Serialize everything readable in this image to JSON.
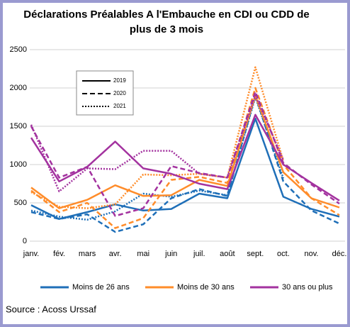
{
  "chart_data": {
    "type": "line",
    "title": [
      "Déclarations Préalables A l'Embauche en CDI ou CDD de",
      "plus de 3 mois"
    ],
    "categories": [
      "janv.",
      "fév.",
      "mars",
      "avr.",
      "mai",
      "juin",
      "juil.",
      "août",
      "sept.",
      "oct.",
      "nov.",
      "déc."
    ],
    "ylim": [
      0,
      2500
    ],
    "yticks": [
      0,
      500,
      1000,
      1500,
      2000,
      2500
    ],
    "grid": true,
    "line_styles": [
      {
        "name": "2019",
        "dash": "solid"
      },
      {
        "name": "2020",
        "dash": "dashed"
      },
      {
        "name": "2021",
        "dash": "dotted"
      }
    ],
    "series": [
      {
        "name": "Moins de 26 ans",
        "color": "#1f6fb8",
        "values_by_year": [
          [
            470,
            290,
            380,
            480,
            400,
            420,
            620,
            560,
            1600,
            580,
            420,
            320
          ],
          [
            380,
            290,
            350,
            120,
            220,
            560,
            680,
            590,
            1900,
            780,
            400,
            230
          ],
          [
            400,
            320,
            280,
            390,
            620,
            580,
            660,
            600,
            1880,
            820,
            null,
            null
          ]
        ]
      },
      {
        "name": "Moins de 30 ans",
        "color": "#ff8c2a",
        "values_by_year": [
          [
            700,
            430,
            540,
            730,
            590,
            600,
            800,
            720,
            1900,
            900,
            560,
            440
          ],
          [
            660,
            380,
            500,
            170,
            300,
            800,
            840,
            760,
            2000,
            1000,
            560,
            340
          ],
          [
            640,
            450,
            430,
            480,
            870,
            860,
            880,
            830,
            2270,
            1050,
            null,
            null
          ]
        ]
      },
      {
        "name": "30 ans ou plus",
        "color": "#a3329f",
        "values_by_year": [
          [
            1350,
            780,
            970,
            1300,
            950,
            880,
            750,
            680,
            1650,
            1000,
            760,
            530
          ],
          [
            1500,
            830,
            970,
            330,
            430,
            980,
            890,
            830,
            1950,
            1020,
            740,
            490
          ],
          [
            1520,
            650,
            950,
            940,
            1180,
            1180,
            880,
            830,
            1900,
            1060,
            null,
            null
          ]
        ]
      }
    ]
  },
  "source": "Source : Acoss Urssaf"
}
